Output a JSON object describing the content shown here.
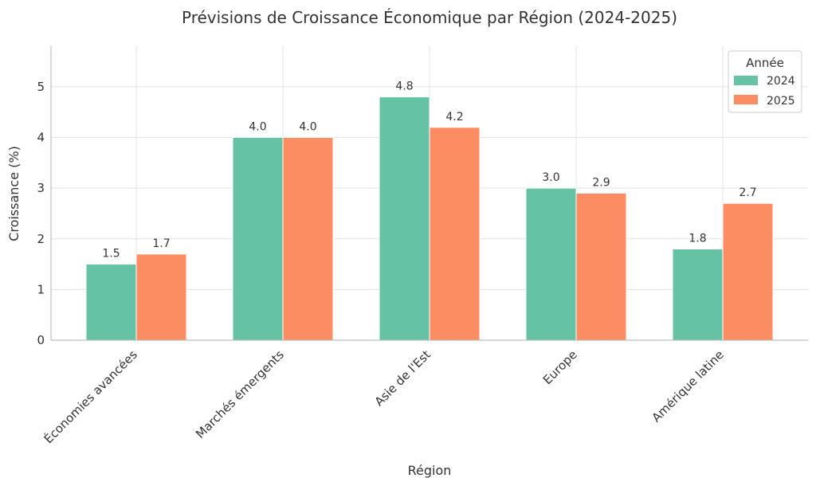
{
  "chart_data": {
    "type": "bar",
    "title": "Prévisions de Croissance Économique par Région (2024-2025)",
    "xlabel": "Région",
    "ylabel": "Croissance (%)",
    "categories": [
      "Économies avancées",
      "Marchés émergents",
      "Asie de l'Est",
      "Europe",
      "Amérique latine"
    ],
    "series": [
      {
        "name": "2024",
        "color": "#66c2a5",
        "values": [
          1.5,
          4.0,
          4.8,
          3.0,
          1.8
        ]
      },
      {
        "name": "2025",
        "color": "#fc8d62",
        "values": [
          1.7,
          4.0,
          4.2,
          2.9,
          2.7
        ]
      }
    ],
    "ylim": [
      0,
      5.8
    ],
    "yticks": [
      0,
      1,
      2,
      3,
      4,
      5
    ],
    "grid": true,
    "legend": {
      "title": "Année",
      "placement": "top-right"
    }
  }
}
